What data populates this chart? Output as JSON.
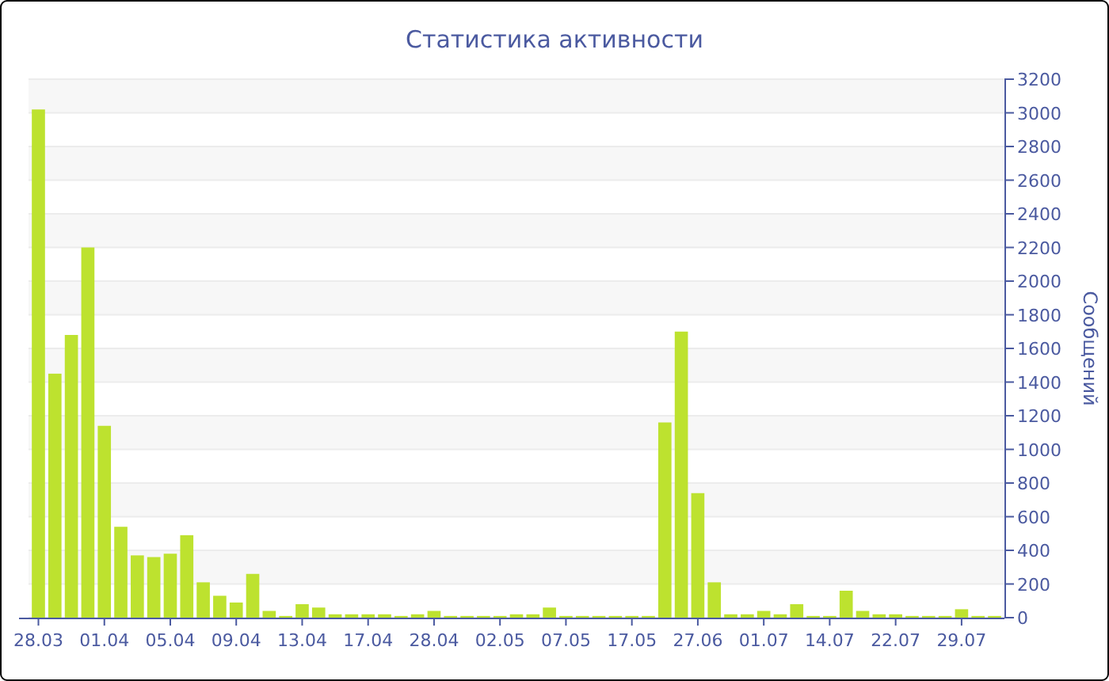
{
  "chart_data": {
    "type": "bar",
    "title": "Статистика активности",
    "ylabel": "Сообщений",
    "categories": [
      "28.03",
      null,
      null,
      null,
      "01.04",
      null,
      null,
      null,
      "05.04",
      null,
      null,
      null,
      "09.04",
      null,
      null,
      null,
      "13.04",
      null,
      null,
      null,
      "17.04",
      null,
      null,
      null,
      "28.04",
      null,
      null,
      null,
      "02.05",
      null,
      null,
      null,
      "07.05",
      null,
      null,
      null,
      "17.05",
      null,
      null,
      null,
      "27.06",
      null,
      null,
      null,
      "01.07",
      null,
      null,
      null,
      "14.07",
      null,
      null,
      null,
      "22.07",
      null,
      null,
      null,
      "29.07",
      null,
      null
    ],
    "values": [
      3020,
      1450,
      1680,
      2200,
      1140,
      540,
      370,
      360,
      380,
      490,
      210,
      130,
      90,
      260,
      40,
      10,
      80,
      60,
      20,
      20,
      20,
      20,
      10,
      20,
      40,
      10,
      10,
      10,
      10,
      20,
      20,
      60,
      10,
      10,
      10,
      10,
      10,
      10,
      1160,
      1700,
      740,
      210,
      20,
      20,
      40,
      20,
      80,
      10,
      10,
      160,
      40,
      20,
      20,
      10,
      10,
      10,
      50,
      10,
      10
    ],
    "color": "#bde22f",
    "ylim": [
      0,
      3200
    ],
    "yticks": [
      0,
      200,
      400,
      600,
      800,
      1000,
      1200,
      1400,
      1600,
      1800,
      2000,
      2200,
      2400,
      2600,
      2800,
      3000,
      3200
    ],
    "grid": "y"
  }
}
